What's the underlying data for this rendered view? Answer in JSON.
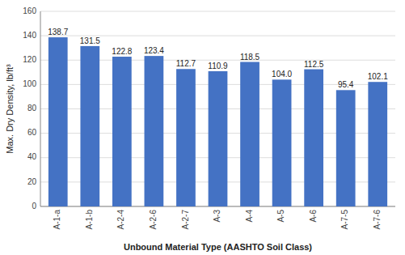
{
  "chart_data": {
    "type": "bar",
    "categories": [
      "A-1-a",
      "A-1-b",
      "A-2-4",
      "A-2-6",
      "A-2-7",
      "A-3",
      "A-4",
      "A-5",
      "A-6",
      "A-7-5",
      "A-7-6"
    ],
    "values": [
      138.7,
      131.5,
      122.8,
      123.4,
      112.7,
      110.9,
      118.5,
      104.0,
      112.5,
      95.4,
      102.1
    ],
    "value_labels": [
      "138.7",
      "131.5",
      "122.8",
      "123.4",
      "112.7",
      "110.9",
      "118.5",
      "104.0",
      "112.5",
      "95.4",
      "102.1"
    ],
    "color": "#4472C4",
    "xlabel": "Unbound Material Type (AASHTO Soil Class)",
    "ylabel": "Max. Dry Density, lb/ft³",
    "ylim": [
      0,
      160
    ],
    "yticks": [
      0,
      20,
      40,
      60,
      80,
      100,
      120,
      140,
      160
    ],
    "grid": true,
    "data_labels": true
  }
}
